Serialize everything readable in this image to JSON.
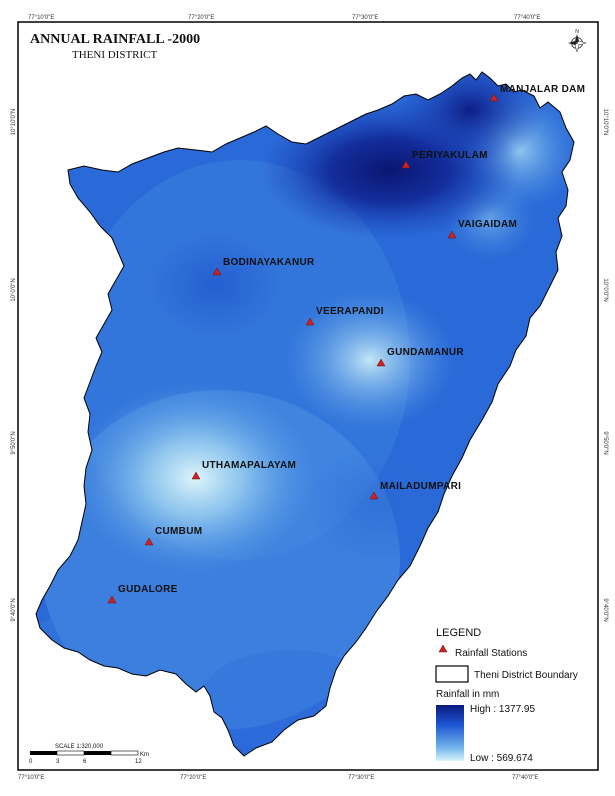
{
  "map": {
    "title": "ANNUAL RAINFALL -2000",
    "subtitle": "THENI DISTRICT"
  },
  "graticule": {
    "top": [
      "77°10'0\"E",
      "77°20'0\"E",
      "77°30'0\"E",
      "77°40'0\"E"
    ],
    "bottom": [
      "77°10'0\"E",
      "77°20'0\"E",
      "77°30'0\"E",
      "77°40'0\"E"
    ],
    "left": [
      "10°10'0\"N",
      "10°0'0\"N",
      "9°50'0\"N",
      "9°40'0\"N"
    ],
    "right": [
      "10°10'0\"N",
      "10°0'0\"N",
      "9°50'0\"N",
      "9°40'0\"N"
    ]
  },
  "stations": [
    {
      "name": "MANJALAR DAM"
    },
    {
      "name": "PERIYAKULAM"
    },
    {
      "name": "VAIGAIDAM"
    },
    {
      "name": "BODINAYAKANUR"
    },
    {
      "name": "VEERAPANDI"
    },
    {
      "name": "GUNDAMANUR"
    },
    {
      "name": "UTHAMAPALAYAM"
    },
    {
      "name": "MAILADUMPARI"
    },
    {
      "name": "CUMBUM"
    },
    {
      "name": "GUDALORE"
    }
  ],
  "legend": {
    "title": "LEGEND",
    "stations_label": "Rainfall Stations",
    "boundary_label": "Theni District Boundary",
    "rainfall_title": "Rainfall in mm",
    "high_label": "High : 1377.95",
    "low_label": "Low : 569.674",
    "high_value": 1377.95,
    "low_value": 569.674,
    "high_color": "#0a1a7a",
    "low_color": "#d8f4fb",
    "station_color": "#cc2222"
  },
  "scalebar": {
    "label": "SCALE 1:320,000",
    "ticks": [
      "0",
      "3",
      "6",
      "",
      "12"
    ],
    "unit": "Km"
  }
}
